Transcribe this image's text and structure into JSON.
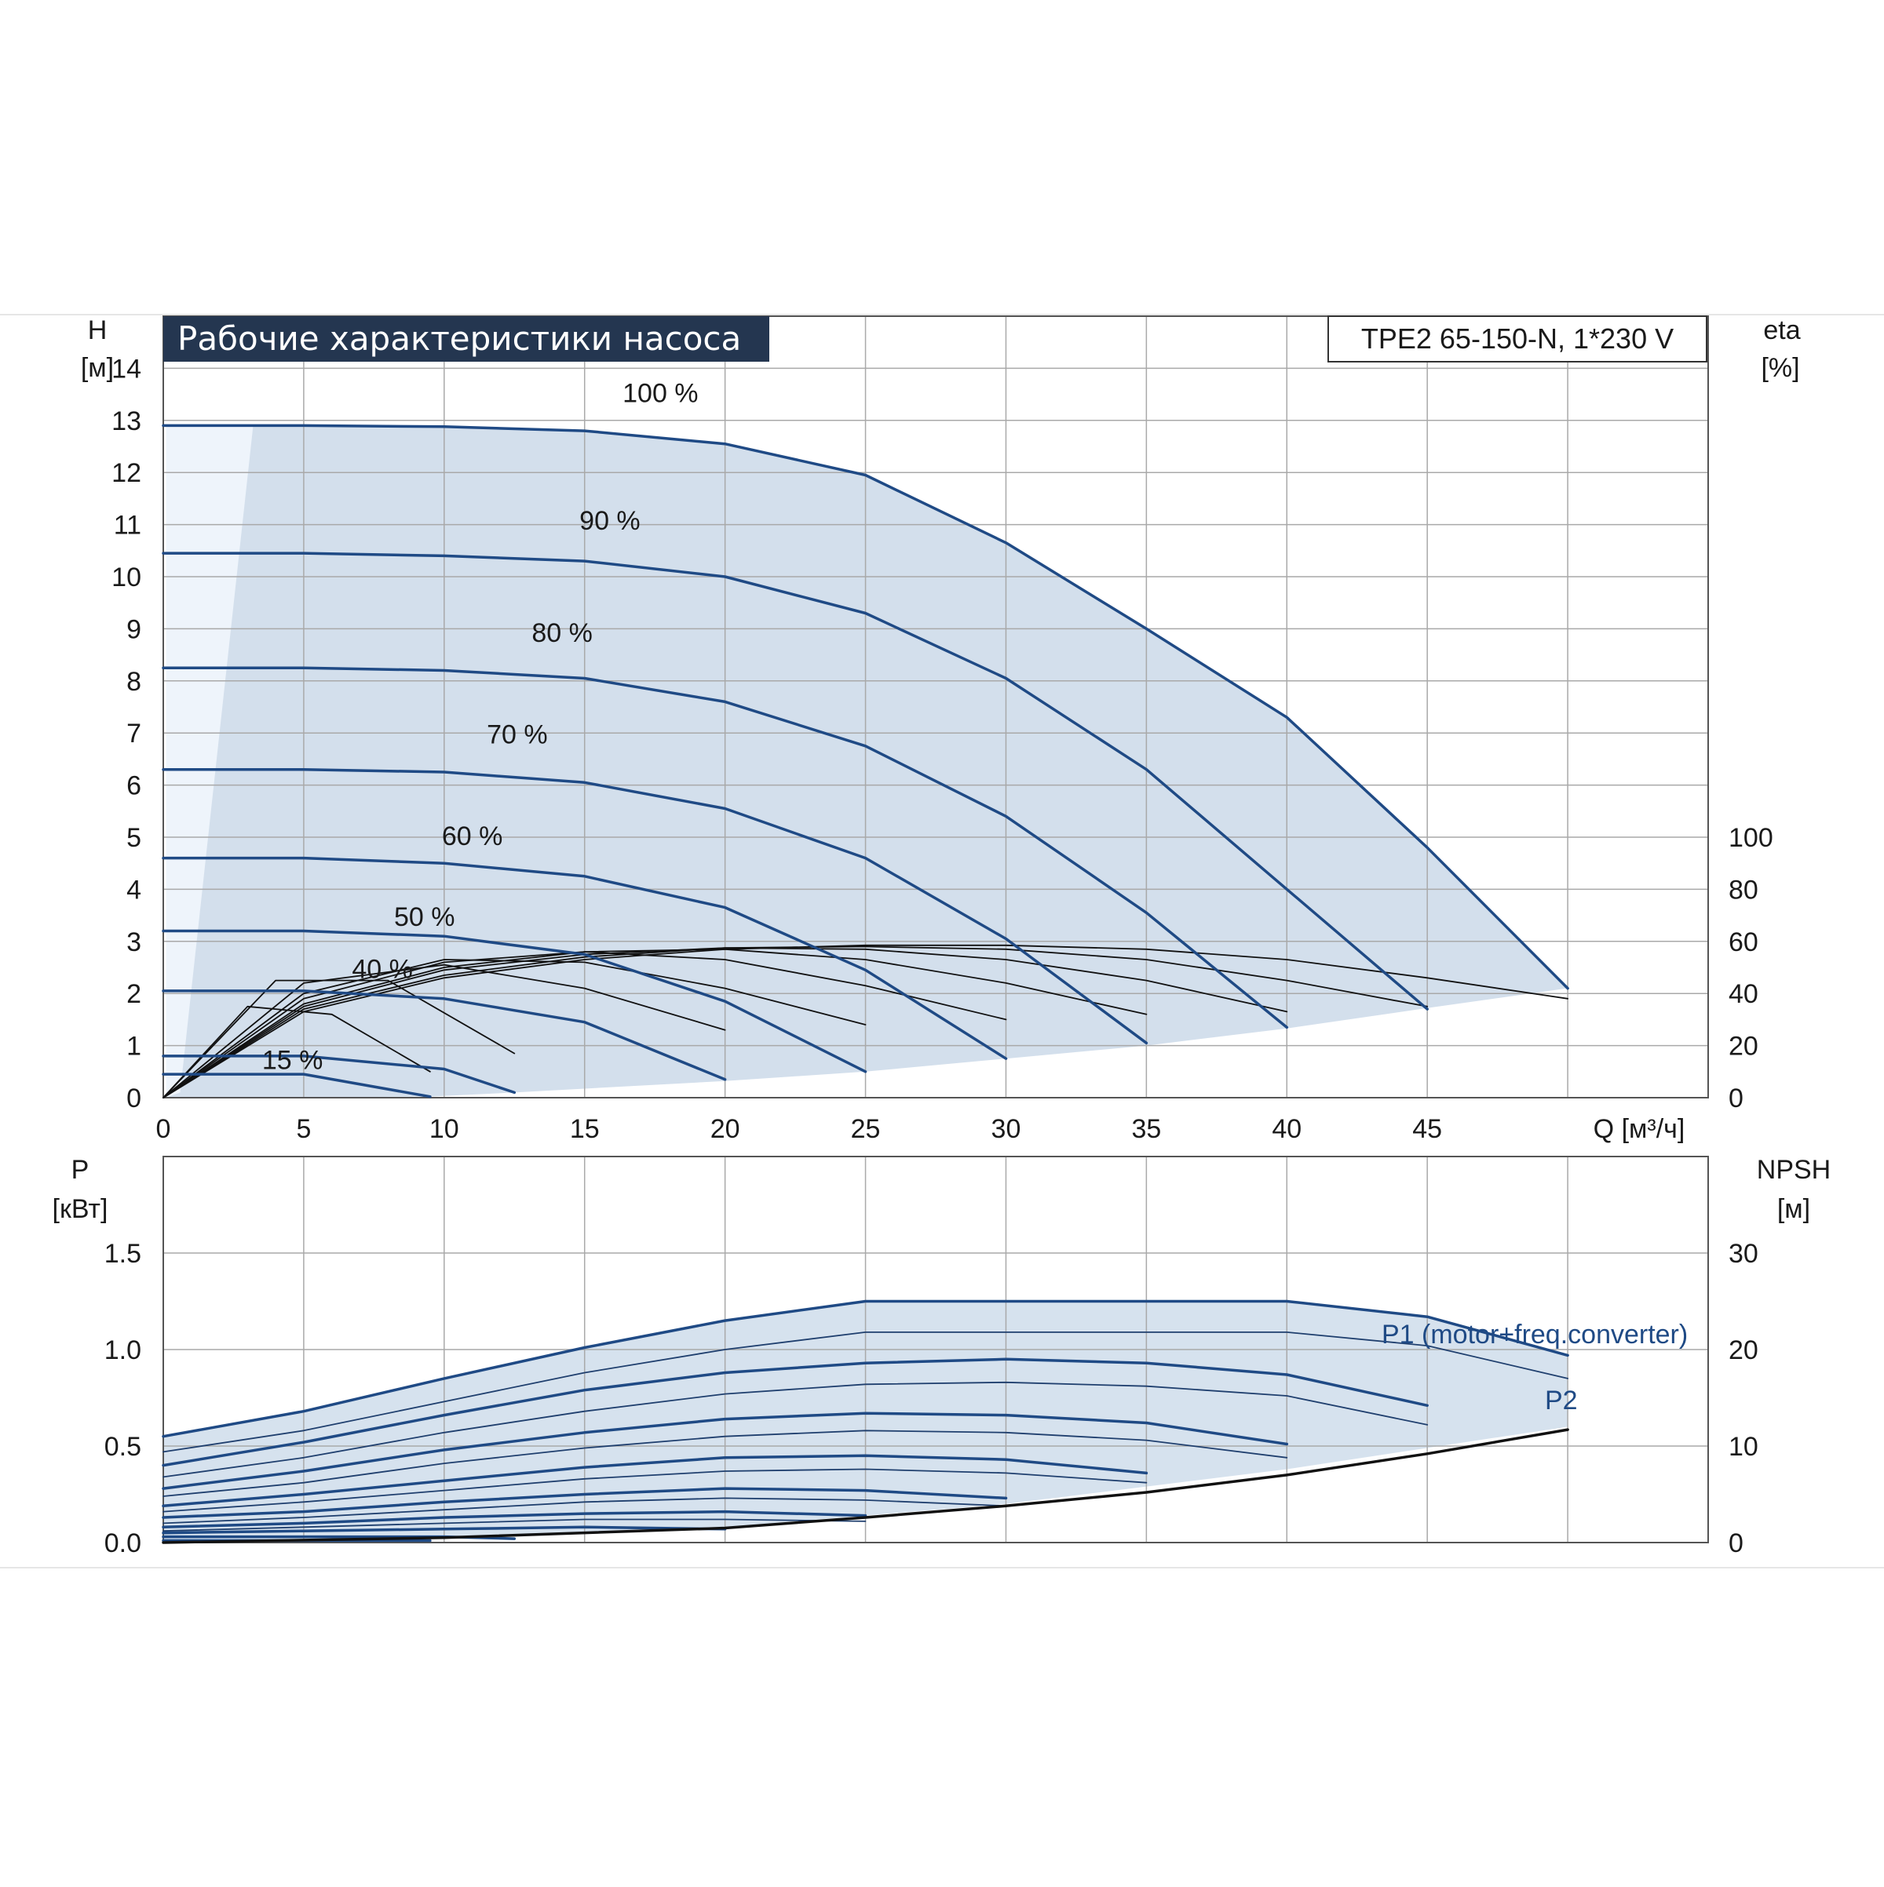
{
  "chart_data": [
    {
      "type": "line",
      "title": "Рабочие характеристики насоса",
      "model": "TPE2 65-150-N, 1*230 V",
      "xlabel": "Q [м³/ч]",
      "ylabel_top": "H",
      "ylabel_bottom": "[м]",
      "y2label_top": "eta",
      "y2label_bottom": "[%]",
      "xlim": [
        0,
        55
      ],
      "ylim": [
        0,
        15
      ],
      "y2lim": [
        0,
        100
      ],
      "x_ticks": [
        "0",
        "5",
        "10",
        "15",
        "20",
        "25",
        "30",
        "35",
        "40",
        "45"
      ],
      "y_ticks": [
        "0",
        "1",
        "2",
        "3",
        "4",
        "5",
        "6",
        "7",
        "8",
        "9",
        "10",
        "11",
        "12",
        "13",
        "14"
      ],
      "y2_ticks": [
        "0",
        "20",
        "40",
        "60",
        "80",
        "100"
      ],
      "grid": true,
      "operating_area_color": "#d3dfec",
      "curve_color": "#1f4a85",
      "series": [
        {
          "name": "100 %",
          "x": [
            0,
            5,
            10,
            15,
            20,
            25,
            30,
            35,
            40,
            45,
            50
          ],
          "y": [
            12.9,
            12.9,
            12.88,
            12.8,
            12.55,
            11.95,
            10.65,
            9.0,
            7.3,
            4.8,
            2.1
          ]
        },
        {
          "name": "90 %",
          "x": [
            0,
            5,
            10,
            15,
            20,
            25,
            30,
            35,
            40,
            45
          ],
          "y": [
            10.45,
            10.45,
            10.4,
            10.3,
            10.0,
            9.3,
            8.05,
            6.3,
            4.0,
            1.7
          ]
        },
        {
          "name": "80 %",
          "x": [
            0,
            5,
            10,
            15,
            20,
            25,
            30,
            35,
            40
          ],
          "y": [
            8.25,
            8.25,
            8.2,
            8.05,
            7.6,
            6.75,
            5.4,
            3.55,
            1.35
          ]
        },
        {
          "name": "70 %",
          "x": [
            0,
            5,
            10,
            15,
            20,
            25,
            30,
            35
          ],
          "y": [
            6.3,
            6.3,
            6.25,
            6.05,
            5.55,
            4.6,
            3.05,
            1.05
          ]
        },
        {
          "name": "60 %",
          "x": [
            0,
            5,
            10,
            15,
            20,
            25,
            30
          ],
          "y": [
            4.6,
            4.6,
            4.5,
            4.25,
            3.65,
            2.45,
            0.75
          ]
        },
        {
          "name": "50 %",
          "x": [
            0,
            5,
            10,
            15,
            20,
            25
          ],
          "y": [
            3.2,
            3.2,
            3.1,
            2.75,
            1.85,
            0.5
          ]
        },
        {
          "name": "40 %",
          "x": [
            0,
            5,
            10,
            15,
            20
          ],
          "y": [
            2.05,
            2.05,
            1.9,
            1.45,
            0.35
          ]
        },
        {
          "name": "",
          "x": [
            0,
            5,
            10,
            12.5
          ],
          "y": [
            0.8,
            0.8,
            0.55,
            0.1
          ]
        },
        {
          "name": "15 %",
          "x": [
            0,
            5,
            9.5
          ],
          "y": [
            0.45,
            0.45,
            0.02
          ]
        }
      ],
      "efficiency_curves": [
        {
          "x": [
            0,
            5,
            10,
            15,
            20,
            25,
            30,
            35,
            40,
            45,
            50
          ],
          "y": [
            0,
            33,
            46,
            53,
            57,
            58.5,
            58.5,
            57,
            53,
            46,
            38
          ]
        },
        {
          "x": [
            0,
            5,
            10,
            15,
            20,
            25,
            30,
            35,
            40,
            45
          ],
          "y": [
            0,
            34,
            47,
            54,
            57.5,
            58,
            57,
            53,
            45,
            35
          ]
        },
        {
          "x": [
            0,
            5,
            10,
            15,
            20,
            25,
            30,
            35,
            40
          ],
          "y": [
            0,
            35,
            49,
            55,
            57.5,
            57,
            53,
            45,
            33
          ]
        },
        {
          "x": [
            0,
            5,
            10,
            15,
            20,
            25,
            30,
            35
          ],
          "y": [
            0,
            36,
            50,
            56,
            57,
            53,
            44,
            32
          ]
        },
        {
          "x": [
            0,
            5,
            10,
            15,
            20,
            25,
            30
          ],
          "y": [
            0,
            38,
            52,
            56,
            53,
            43,
            30
          ]
        },
        {
          "x": [
            0,
            5,
            10,
            15,
            20,
            25
          ],
          "y": [
            0,
            40,
            53,
            52,
            42,
            28
          ]
        },
        {
          "x": [
            0,
            5,
            10,
            15,
            20
          ],
          "y": [
            0,
            44,
            51,
            42,
            26
          ]
        },
        {
          "x": [
            0,
            4,
            8,
            12.5
          ],
          "y": [
            0,
            45,
            45,
            17
          ]
        },
        {
          "x": [
            0,
            3,
            6,
            9.5
          ],
          "y": [
            0,
            35,
            32,
            10
          ]
        }
      ]
    },
    {
      "type": "line",
      "xlabel": "Q [м³/ч]",
      "ylabel_top": "P",
      "ylabel_bottom": "[кВт]",
      "y2label_top": "NPSH",
      "y2label_bottom": "[м]",
      "xlim": [
        0,
        55
      ],
      "ylim": [
        0,
        2.0
      ],
      "y2lim": [
        0,
        40
      ],
      "y_ticks": [
        "0.0",
        "0.5",
        "1.0",
        "1.5"
      ],
      "y2_ticks": [
        "0",
        "10",
        "20",
        "30"
      ],
      "grid": true,
      "annotations": [
        "P1 (motor+freq.converter)",
        "P2"
      ],
      "p1_curves": [
        {
          "x": [
            0,
            5,
            10,
            15,
            20,
            25,
            30,
            35,
            40,
            45,
            50
          ],
          "y": [
            0.55,
            0.68,
            0.85,
            1.01,
            1.15,
            1.25,
            1.25,
            1.25,
            1.25,
            1.17,
            0.97
          ]
        },
        {
          "x": [
            0,
            5,
            10,
            15,
            20,
            25,
            30,
            35,
            40,
            45
          ],
          "y": [
            0.4,
            0.52,
            0.66,
            0.79,
            0.88,
            0.93,
            0.95,
            0.93,
            0.87,
            0.71
          ]
        },
        {
          "x": [
            0,
            5,
            10,
            15,
            20,
            25,
            30,
            35,
            40
          ],
          "y": [
            0.28,
            0.37,
            0.48,
            0.57,
            0.64,
            0.67,
            0.66,
            0.62,
            0.51
          ]
        },
        {
          "x": [
            0,
            5,
            10,
            15,
            20,
            25,
            30,
            35
          ],
          "y": [
            0.19,
            0.25,
            0.32,
            0.39,
            0.44,
            0.45,
            0.43,
            0.36
          ]
        },
        {
          "x": [
            0,
            5,
            10,
            15,
            20,
            25,
            30
          ],
          "y": [
            0.13,
            0.16,
            0.21,
            0.25,
            0.28,
            0.27,
            0.23
          ]
        },
        {
          "x": [
            0,
            5,
            10,
            15,
            20,
            25
          ],
          "y": [
            0.08,
            0.1,
            0.13,
            0.15,
            0.16,
            0.14
          ]
        },
        {
          "x": [
            0,
            5,
            10,
            15,
            20
          ],
          "y": [
            0.05,
            0.06,
            0.07,
            0.08,
            0.07
          ]
        },
        {
          "x": [
            0,
            5,
            10,
            12.5
          ],
          "y": [
            0.03,
            0.03,
            0.03,
            0.02
          ]
        },
        {
          "x": [
            0,
            5,
            9.5
          ],
          "y": [
            0.01,
            0.01,
            0.01
          ]
        }
      ],
      "p2_curves": [
        {
          "x": [
            0,
            5,
            10,
            15,
            20,
            25,
            30,
            35,
            40,
            45,
            50
          ],
          "y": [
            0.47,
            0.58,
            0.73,
            0.88,
            1.0,
            1.09,
            1.09,
            1.09,
            1.09,
            1.02,
            0.85
          ]
        },
        {
          "x": [
            0,
            5,
            10,
            15,
            20,
            25,
            30,
            35,
            40,
            45
          ],
          "y": [
            0.34,
            0.44,
            0.57,
            0.68,
            0.77,
            0.82,
            0.83,
            0.81,
            0.76,
            0.61
          ]
        },
        {
          "x": [
            0,
            5,
            10,
            15,
            20,
            25,
            30,
            35,
            40
          ],
          "y": [
            0.24,
            0.31,
            0.41,
            0.49,
            0.55,
            0.58,
            0.57,
            0.53,
            0.44
          ]
        },
        {
          "x": [
            0,
            5,
            10,
            15,
            20,
            25,
            30,
            35
          ],
          "y": [
            0.16,
            0.21,
            0.27,
            0.33,
            0.37,
            0.38,
            0.36,
            0.31
          ]
        },
        {
          "x": [
            0,
            5,
            10,
            15,
            20,
            25,
            30
          ],
          "y": [
            0.1,
            0.13,
            0.17,
            0.21,
            0.23,
            0.22,
            0.19
          ]
        },
        {
          "x": [
            0,
            5,
            10,
            15,
            20,
            25
          ],
          "y": [
            0.06,
            0.08,
            0.1,
            0.12,
            0.12,
            0.11
          ]
        }
      ],
      "npsh_curve": {
        "x": [
          0,
          10,
          20,
          25,
          30,
          35,
          40,
          45,
          50
        ],
        "y": [
          0,
          0.5,
          1.5,
          2.6,
          3.8,
          5.2,
          7.0,
          9.2,
          11.7
        ]
      }
    }
  ]
}
